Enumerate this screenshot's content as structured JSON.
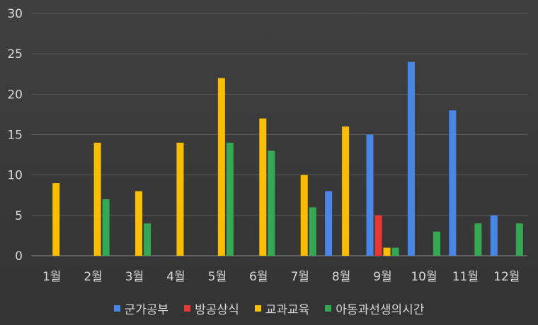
{
  "chart_data": {
    "type": "bar",
    "categories": [
      "1월",
      "2월",
      "3월",
      "4월",
      "5월",
      "6월",
      "7월",
      "8월",
      "9월",
      "10월",
      "11월",
      "12월"
    ],
    "series": [
      {
        "name": "군가공부",
        "color": "#4a86e8",
        "values": [
          0,
          0,
          0,
          0,
          0,
          0,
          0,
          8,
          15,
          24,
          18,
          5
        ]
      },
      {
        "name": "방공상식",
        "color": "#e53935",
        "values": [
          0,
          0,
          0,
          0,
          0,
          0,
          0,
          0,
          5,
          0,
          0,
          0
        ]
      },
      {
        "name": "교과교육",
        "color": "#fbbc04",
        "values": [
          9,
          14,
          8,
          14,
          22,
          17,
          10,
          16,
          1,
          0,
          0,
          0
        ]
      },
      {
        "name": "아동과선생의시간",
        "color": "#34a853",
        "values": [
          0,
          7,
          4,
          0,
          14,
          13,
          6,
          0,
          1,
          3,
          4,
          4
        ]
      }
    ],
    "ylim": [
      0,
      30
    ],
    "yticks": [
      0,
      5,
      10,
      15,
      20,
      25,
      30
    ],
    "grid": true,
    "legend_position": "bottom"
  }
}
